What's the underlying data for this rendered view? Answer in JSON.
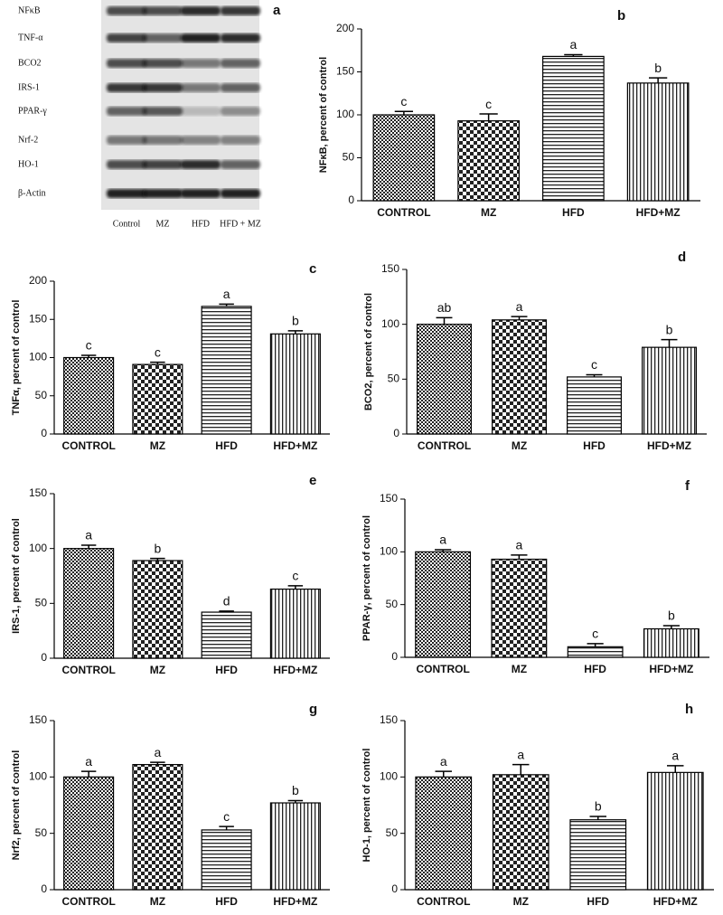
{
  "blot": {
    "label": "a",
    "proteins": [
      "NFκB",
      "TNF-α",
      "BCO2",
      "IRS-1",
      "PPAR-γ",
      "Nrf-2",
      "HO-1",
      "β-Actin"
    ],
    "lanes": [
      "Control",
      "MZ",
      "HFD",
      "HFD + MZ"
    ]
  },
  "chart_data": [
    {
      "type": "bar",
      "title": "b",
      "ylabel": "NFκB, percent of control",
      "categories": [
        "CONTROL",
        "MZ",
        "HFD",
        "HFD+MZ"
      ],
      "values": [
        100,
        93,
        168,
        137
      ],
      "errors": [
        4,
        8,
        2,
        6
      ],
      "annotations": [
        "c",
        "c",
        "a",
        "b"
      ],
      "ylim": [
        0,
        200
      ],
      "yticks": [
        0,
        50,
        100,
        150,
        200
      ]
    },
    {
      "type": "bar",
      "title": "c",
      "ylabel": "TNFα, percent of control",
      "categories": [
        "CONTROL",
        "MZ",
        "HFD",
        "HFD+MZ"
      ],
      "values": [
        100,
        91,
        167,
        131
      ],
      "errors": [
        3,
        3,
        3,
        4
      ],
      "annotations": [
        "c",
        "c",
        "a",
        "b"
      ],
      "ylim": [
        0,
        200
      ],
      "yticks": [
        0,
        50,
        100,
        150,
        200
      ]
    },
    {
      "type": "bar",
      "title": "d",
      "ylabel": "BCO2, percent of control",
      "categories": [
        "CONTROL",
        "MZ",
        "HFD",
        "HFD+MZ"
      ],
      "values": [
        100,
        104,
        52,
        79
      ],
      "errors": [
        6,
        3,
        2,
        7
      ],
      "annotations": [
        "ab",
        "a",
        "c",
        "b"
      ],
      "ylim": [
        0,
        150
      ],
      "yticks": [
        0,
        50,
        100,
        150
      ]
    },
    {
      "type": "bar",
      "title": "e",
      "ylabel": "IRS-1, percent of control",
      "categories": [
        "CONTROL",
        "MZ",
        "HFD",
        "HFD+MZ"
      ],
      "values": [
        100,
        89,
        42,
        63
      ],
      "errors": [
        3,
        2,
        1,
        3
      ],
      "annotations": [
        "a",
        "b",
        "d",
        "c"
      ],
      "ylim": [
        0,
        150
      ],
      "yticks": [
        0,
        50,
        100,
        150
      ]
    },
    {
      "type": "bar",
      "title": "f",
      "ylabel": "PPAR-γ, percent of control",
      "categories": [
        "CONTROL",
        "MZ",
        "HFD",
        "HFD+MZ"
      ],
      "values": [
        100,
        93,
        10,
        27
      ],
      "errors": [
        2,
        4,
        3,
        3
      ],
      "annotations": [
        "a",
        "a",
        "c",
        "b"
      ],
      "ylim": [
        0,
        150
      ],
      "yticks": [
        0,
        50,
        100,
        150
      ]
    },
    {
      "type": "bar",
      "title": "g",
      "ylabel": "Nrf2, percent of control",
      "categories": [
        "CONTROL",
        "MZ",
        "HFD",
        "HFD+MZ"
      ],
      "values": [
        100,
        111,
        53,
        77
      ],
      "errors": [
        5,
        2,
        3,
        2
      ],
      "annotations": [
        "a",
        "a",
        "c",
        "b"
      ],
      "ylim": [
        0,
        150
      ],
      "yticks": [
        0,
        50,
        100,
        150
      ]
    },
    {
      "type": "bar",
      "title": "h",
      "ylabel": "HO-1, percent of control",
      "categories": [
        "CONTROL",
        "MZ",
        "HFD",
        "HFD+MZ"
      ],
      "values": [
        100,
        102,
        62,
        104
      ],
      "errors": [
        5,
        9,
        3,
        6
      ],
      "annotations": [
        "a",
        "a",
        "b",
        "a"
      ],
      "ylim": [
        0,
        150
      ],
      "yticks": [
        0,
        50,
        100,
        150
      ]
    }
  ]
}
